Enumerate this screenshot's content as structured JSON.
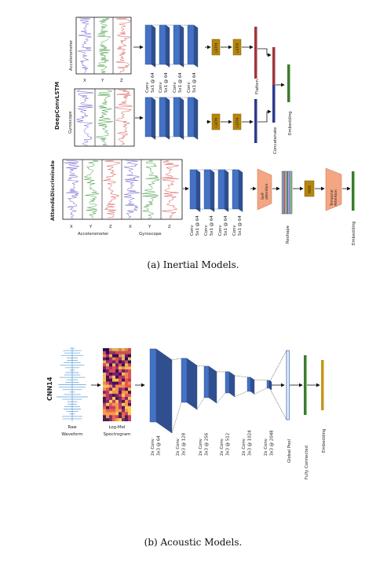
{
  "inertial": {
    "caption": "(a) Inertial Models.",
    "deepconvlstm": {
      "title": "DeepConvLSTM",
      "accel_label": "Accelerometer",
      "gyro_label": "Gyroscope",
      "axes": [
        "X",
        "Y",
        "Z"
      ],
      "conv_labels": [
        "Conv\n5x1 @ 64",
        "Conv\n5x1 @ 64",
        "Conv\n5x1 @ 64",
        "Conv\n5x1 @ 64"
      ],
      "lstm": "LSTM",
      "flatten": "Flatten",
      "concatenate": "Concatenate",
      "embedding": "Embedding"
    },
    "attend": {
      "title": "Attend&Discriminate",
      "axes": [
        "X",
        "Y",
        "Z",
        "X",
        "Y",
        "Z"
      ],
      "accel_label": "Accelerometer",
      "gyro_label": "Gyroscope",
      "conv_labels": [
        "Conv\n5x1 @ 64",
        "Conv\n5x1 @ 64",
        "Conv\n5x1 @ 64",
        "Conv\n5x1 @ 64"
      ],
      "self_attention": "Self-\nattention",
      "reshape": "Reshape",
      "rnn": "RNN",
      "temporal_attention": "Temporal\nAttention",
      "embedding": "Embedding"
    }
  },
  "acoustic": {
    "caption": "(b) Acoustic Models.",
    "cnn14": {
      "title": "CNN14",
      "raw_waveform": "Raw\nWaveform",
      "log_mel": "Log-Mel\nSpectrogram",
      "conv_labels": [
        "2x Conv\n3x3 @ 64",
        "2x Conv\n3x3 @ 128",
        "2x Conv\n3x3 @ 256",
        "2x Conv\n3x3 @ 512",
        "2x Conv\n3x3 @ 1024",
        "2x Conv\n3x3 @ 2048"
      ],
      "global_pool": "Global Pool",
      "fully_connected": "Fully Connected",
      "embedding": "Embedding"
    }
  },
  "colors": {
    "conv": "#4472c4",
    "lstm": "#b8860b",
    "attention": "#f4a582",
    "embedding_green": "#3a7d2c",
    "navy": "#2e3a8c",
    "accel_x": "#6a5acd",
    "accel_y": "#3a9a3a",
    "accel_z": "#d9534f"
  }
}
